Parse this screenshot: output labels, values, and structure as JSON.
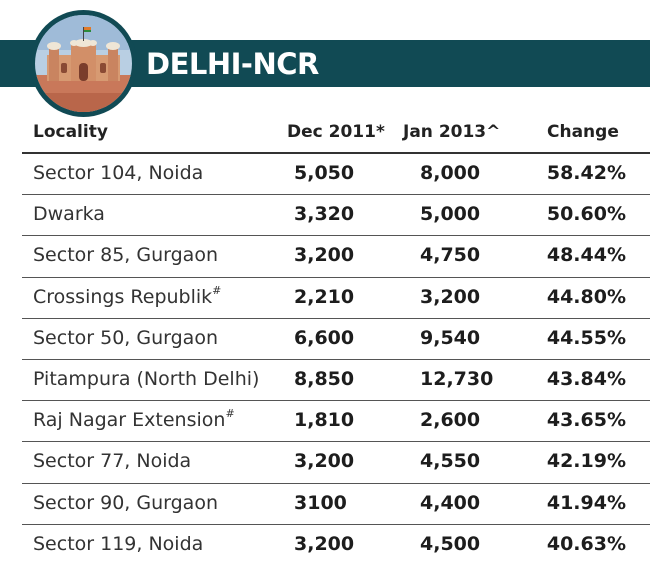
{
  "title": "DELHI-NCR",
  "columns": {
    "locality": "Locality",
    "dec2011": "Dec 2011*",
    "jan2013": "Jan 2013^",
    "change": "Change"
  },
  "rows": [
    {
      "locality": "Sector 104, Noida",
      "mark": "",
      "dec2011": "5,050",
      "jan2013": "8,000",
      "change": "58.42%"
    },
    {
      "locality": "Dwarka",
      "mark": "",
      "dec2011": "3,320",
      "jan2013": "5,000",
      "change": "50.60%"
    },
    {
      "locality": "Sector 85, Gurgaon",
      "mark": "",
      "dec2011": "3,200",
      "jan2013": "4,750",
      "change": "48.44%"
    },
    {
      "locality": "Crossings Republik",
      "mark": "#",
      "dec2011": "2,210",
      "jan2013": "3,200",
      "change": "44.80%"
    },
    {
      "locality": "Sector 50, Gurgaon",
      "mark": "",
      "dec2011": "6,600",
      "jan2013": "9,540",
      "change": "44.55%"
    },
    {
      "locality": "Pitampura (North Delhi)",
      "mark": "",
      "dec2011": "8,850",
      "jan2013": "12,730",
      "change": "43.84%"
    },
    {
      "locality": "Raj Nagar Extension",
      "mark": "#",
      "dec2011": "1,810",
      "jan2013": "2,600",
      "change": "43.65%"
    },
    {
      "locality": "Sector 77, Noida",
      "mark": "",
      "dec2011": "3,200",
      "jan2013": "4,550",
      "change": "42.19%"
    },
    {
      "locality": "Sector 90, Gurgaon",
      "mark": "",
      "dec2011": "3100",
      "jan2013": "4,400",
      "change": "41.94%"
    },
    {
      "locality": "Sector 119, Noida",
      "mark": "",
      "dec2011": "3,200",
      "jan2013": "4,500",
      "change": "40.63%"
    }
  ],
  "colors": {
    "banner": "#114a54",
    "text": "#2a2a2a"
  },
  "emblem_icon": "red-fort-icon"
}
